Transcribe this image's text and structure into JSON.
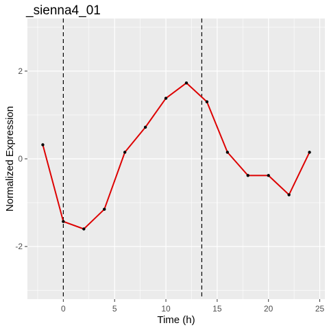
{
  "chart_data": {
    "type": "line",
    "title": "_sienna4_01",
    "xlabel": "Time (h)",
    "ylabel": "Normalized Expression",
    "xlim": [
      -3.5,
      25.5
    ],
    "ylim": [
      -3.2,
      3.2
    ],
    "x_ticks": [
      0,
      5,
      10,
      15,
      20,
      25
    ],
    "x_tick_labels": [
      "0",
      "5",
      "10",
      "15",
      "20",
      "25"
    ],
    "y_ticks": [
      -2,
      0,
      2
    ],
    "y_tick_labels": [
      "-2",
      "0",
      "2"
    ],
    "grid": true,
    "legend": "none",
    "vlines": [
      0,
      13.5
    ],
    "series": [
      {
        "x": [
          -2,
          0,
          2,
          4,
          6,
          8,
          10,
          12,
          14,
          16,
          18,
          20,
          22,
          24
        ],
        "values": [
          0.32,
          -1.43,
          -1.6,
          -1.15,
          0.15,
          0.72,
          1.38,
          1.73,
          1.3,
          0.15,
          -0.38,
          -0.38,
          -0.82,
          0.15
        ],
        "color": "#dd0000"
      }
    ],
    "colors": {
      "panel_bg": "#ebebeb",
      "grid": "#ffffff",
      "point": "#000000",
      "vline": "#000000"
    }
  }
}
